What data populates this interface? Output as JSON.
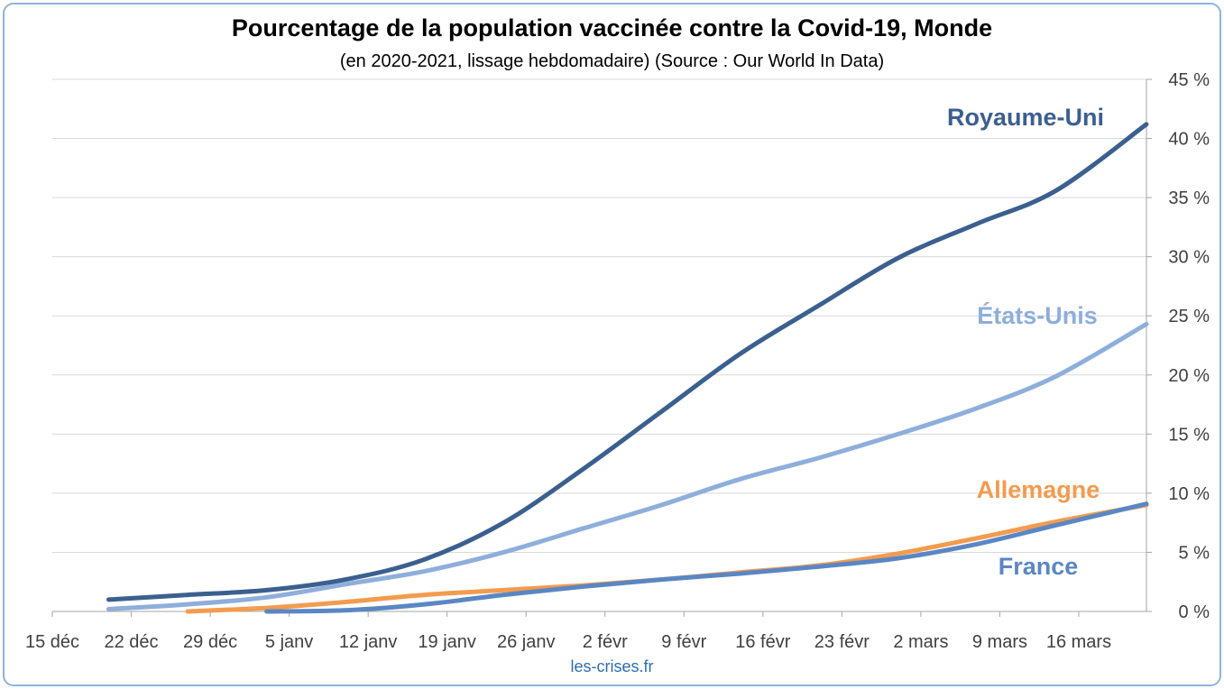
{
  "chart_data": {
    "type": "line",
    "title": "Pourcentage de la population vaccinée contre la Covid-19, Monde",
    "subtitle": "(en 2020-2021, lissage hebdomadaire) (Source : Our World In Data)",
    "xlabel": "",
    "ylabel": "",
    "x_axis": {
      "unit": "day",
      "start": "2020-12-15",
      "end": "2021-03-22",
      "tick_labels": [
        "15 déc",
        "22 déc",
        "29 déc",
        "5 janv",
        "12 janv",
        "19 janv",
        "26 janv",
        "2 févr",
        "9 févr",
        "16 févr",
        "23 févr",
        "2 mars",
        "9 mars",
        "16 mars"
      ],
      "tick_dates": [
        "2020-12-15",
        "2020-12-22",
        "2020-12-29",
        "2021-01-05",
        "2021-01-12",
        "2021-01-19",
        "2021-01-26",
        "2021-02-02",
        "2021-02-09",
        "2021-02-16",
        "2021-02-23",
        "2021-03-02",
        "2021-03-09",
        "2021-03-16"
      ]
    },
    "y_axis": {
      "position": "right",
      "ylim": [
        0,
        45
      ],
      "tick_labels": [
        "0 %",
        "5 %",
        "10 %",
        "15 %",
        "20 %",
        "25 %",
        "30 %",
        "35 %",
        "40 %",
        "45 %"
      ],
      "tick_values": [
        0,
        5,
        10,
        15,
        20,
        25,
        30,
        35,
        40,
        45
      ]
    },
    "grid": "horizontal",
    "series": [
      {
        "name": "Royaume-Uni",
        "color": "#3b5f8f",
        "x": [
          "2020-12-20",
          "2020-12-27",
          "2021-01-03",
          "2021-01-10",
          "2021-01-17",
          "2021-01-24",
          "2021-01-31",
          "2021-02-07",
          "2021-02-14",
          "2021-02-21",
          "2021-02-28",
          "2021-03-07",
          "2021-03-14",
          "2021-03-22"
        ],
        "values": [
          1.0,
          1.4,
          1.8,
          2.7,
          4.4,
          7.5,
          12.0,
          16.9,
          21.8,
          25.9,
          29.9,
          32.8,
          35.6,
          41.2
        ]
      },
      {
        "name": "États-Unis",
        "color": "#8eaedb",
        "x": [
          "2020-12-20",
          "2020-12-27",
          "2021-01-03",
          "2021-01-10",
          "2021-01-17",
          "2021-01-24",
          "2021-01-31",
          "2021-02-07",
          "2021-02-14",
          "2021-02-21",
          "2021-02-28",
          "2021-03-07",
          "2021-03-14",
          "2021-03-22"
        ],
        "values": [
          0.2,
          0.6,
          1.2,
          2.3,
          3.4,
          5.0,
          7.0,
          9.0,
          11.2,
          13.0,
          15.0,
          17.2,
          19.9,
          24.3
        ]
      },
      {
        "name": "Allemagne",
        "color": "#f39b4e",
        "x": [
          "2020-12-27",
          "2021-01-03",
          "2021-01-10",
          "2021-01-17",
          "2021-01-24",
          "2021-01-31",
          "2021-02-07",
          "2021-02-14",
          "2021-02-21",
          "2021-02-28",
          "2021-03-07",
          "2021-03-14",
          "2021-03-22"
        ],
        "values": [
          0.0,
          0.3,
          0.8,
          1.4,
          1.8,
          2.2,
          2.7,
          3.3,
          3.9,
          4.9,
          6.2,
          7.6,
          9.0
        ]
      },
      {
        "name": "France",
        "color": "#5a87c4",
        "x": [
          "2021-01-03",
          "2021-01-10",
          "2021-01-17",
          "2021-01-24",
          "2021-01-31",
          "2021-02-07",
          "2021-02-14",
          "2021-02-21",
          "2021-02-28",
          "2021-03-07",
          "2021-03-14",
          "2021-03-22"
        ],
        "values": [
          0.0,
          0.1,
          0.6,
          1.4,
          2.1,
          2.7,
          3.2,
          3.8,
          4.5,
          5.7,
          7.3,
          9.1
        ]
      }
    ],
    "annotations": [
      {
        "series": "Royaume-Uni",
        "text": "Royaume-Uni"
      },
      {
        "series": "États-Unis",
        "text": "États-Unis"
      },
      {
        "series": "Allemagne",
        "text": "Allemagne"
      },
      {
        "series": "France",
        "text": "France"
      }
    ]
  },
  "credit": "les-crises.fr",
  "colors": {
    "frame_border": "#8fb3de",
    "grid": "#d9d9d9",
    "axis": "#a6a6a6",
    "credit": "#2e6db4"
  }
}
